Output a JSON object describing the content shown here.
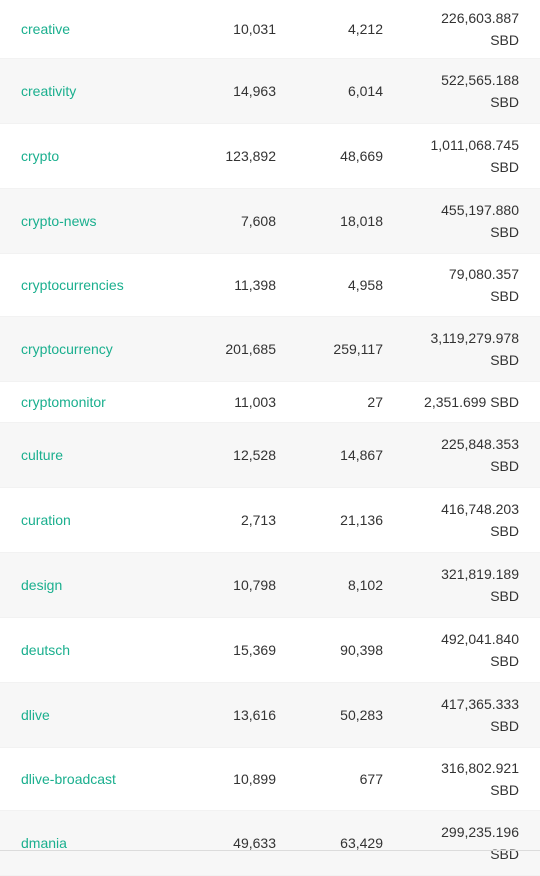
{
  "tags_table": {
    "rows": [
      {
        "tag": "creative",
        "posts": "10,031",
        "comments": "4,212",
        "payout_line1": "226,603.887",
        "payout_line2": "SBD"
      },
      {
        "tag": "creativity",
        "posts": "14,963",
        "comments": "6,014",
        "payout_line1": "522,565.188",
        "payout_line2": "SBD"
      },
      {
        "tag": "crypto",
        "posts": "123,892",
        "comments": "48,669",
        "payout_line1": "1,011,068.745",
        "payout_line2": "SBD"
      },
      {
        "tag": "crypto-news",
        "posts": "7,608",
        "comments": "18,018",
        "payout_line1": "455,197.880",
        "payout_line2": "SBD"
      },
      {
        "tag": "cryptocurrencies",
        "posts": "11,398",
        "comments": "4,958",
        "payout_line1": "79,080.357",
        "payout_line2": "SBD"
      },
      {
        "tag": "cryptocurrency",
        "posts": "201,685",
        "comments": "259,117",
        "payout_line1": "3,119,279.978",
        "payout_line2": "SBD"
      },
      {
        "tag": "cryptomonitor",
        "posts": "11,003",
        "comments": "27",
        "payout_line1": "2,351.699 SBD",
        "payout_line2": ""
      },
      {
        "tag": "culture",
        "posts": "12,528",
        "comments": "14,867",
        "payout_line1": "225,848.353",
        "payout_line2": "SBD"
      },
      {
        "tag": "curation",
        "posts": "2,713",
        "comments": "21,136",
        "payout_line1": "416,748.203",
        "payout_line2": "SBD"
      },
      {
        "tag": "design",
        "posts": "10,798",
        "comments": "8,102",
        "payout_line1": "321,819.189",
        "payout_line2": "SBD"
      },
      {
        "tag": "deutsch",
        "posts": "15,369",
        "comments": "90,398",
        "payout_line1": "492,041.840",
        "payout_line2": "SBD"
      },
      {
        "tag": "dlive",
        "posts": "13,616",
        "comments": "50,283",
        "payout_line1": "417,365.333",
        "payout_line2": "SBD"
      },
      {
        "tag": "dlive-broadcast",
        "posts": "10,899",
        "comments": "677",
        "payout_line1": "316,802.921",
        "payout_line2": "SBD"
      },
      {
        "tag": "dmania",
        "posts": "49,633",
        "comments": "63,429",
        "payout_line1": "299,235.196",
        "payout_line2": "SBD"
      }
    ]
  },
  "colors": {
    "tag_link": "#1aaf8e",
    "row_alt_bg": "#f7f7f7",
    "text": "#333333"
  }
}
